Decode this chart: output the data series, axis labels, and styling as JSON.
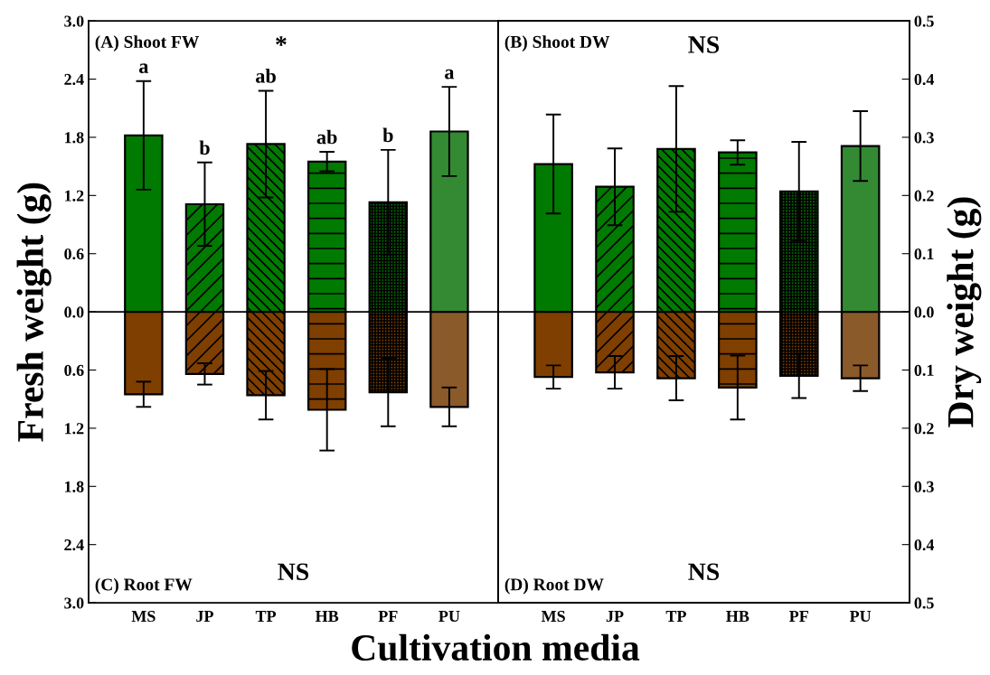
{
  "chart_data": [
    {
      "type": "bar",
      "ylabel": "Fresh weight (g)",
      "xlabel": "Cultivation media",
      "categories": [
        "MS",
        "JP",
        "TP",
        "HB",
        "PF",
        "PU"
      ],
      "series": [
        {
          "colors": [
            "#007a00",
            "#007a00",
            "#007a00",
            "#007a00",
            "#007a00",
            "#338a33"
          ],
          "values": [
            1.82,
            1.11,
            1.73,
            1.55,
            1.13,
            1.86
          ],
          "errors": [
            0.56,
            0.43,
            0.55,
            0.1,
            0.54,
            0.46
          ]
        },
        {
          "colors": [
            "#7f3f00",
            "#7f3f00",
            "#7f3f00",
            "#7f3f00",
            "#7f3f00",
            "#8b5a2b"
          ],
          "values": [
            -0.85,
            -0.64,
            -0.86,
            -1.01,
            -0.83,
            -0.98
          ],
          "errors": [
            0.13,
            0.11,
            0.25,
            0.42,
            0.35,
            0.2
          ]
        }
      ],
      "ylim": [
        -3,
        3
      ],
      "yticks": [
        {
          "value": -3,
          "label": "3.0"
        },
        {
          "value": -2.4,
          "label": "2.4"
        },
        {
          "value": -1.8,
          "label": "1.8"
        },
        {
          "value": -1.2,
          "label": "1.2"
        },
        {
          "value": -0.6,
          "label": "0.6"
        },
        {
          "value": 0,
          "label": "0.0"
        },
        {
          "value": 0.6,
          "label": "0.6"
        },
        {
          "value": 1.2,
          "label": "1.2"
        },
        {
          "value": 1.8,
          "label": "1.8"
        },
        {
          "value": 2.4,
          "label": "2.4"
        },
        {
          "value": 3,
          "label": "3.0"
        }
      ],
      "ref_lines": [
        {
          "axis": "y",
          "value": 0,
          "color": "#000000"
        }
      ],
      "annotations": [
        "(A) Shoot FW",
        "*",
        "(C) Root FW",
        "NS",
        {
          "text": "a",
          "x": "MS",
          "y": 2.38
        },
        {
          "text": "b",
          "x": "JP",
          "y": 1.54
        },
        {
          "text": "ab",
          "x": "TP",
          "y": 2.28
        },
        {
          "text": "ab",
          "x": "HB",
          "y": 1.65
        },
        {
          "text": "b",
          "x": "PF",
          "y": 1.67
        },
        {
          "text": "a",
          "x": "PU",
          "y": 2.32
        }
      ],
      "stacked": true,
      "grid": false,
      "legend": false
    },
    {
      "type": "bar",
      "y2label": "Dry weight (g)",
      "categories": [
        "MS",
        "JP",
        "TP",
        "HB",
        "PF",
        "PU"
      ],
      "series": [
        {
          "axis": "y2",
          "colors": [
            "#007a00",
            "#007a00",
            "#007a00",
            "#007a00",
            "#007a00",
            "#338a33"
          ],
          "values": [
            0.254,
            0.215,
            0.28,
            0.274,
            0.207,
            0.285
          ],
          "errors": [
            0.085,
            0.066,
            0.108,
            0.021,
            0.085,
            0.06
          ]
        },
        {
          "axis": "y2",
          "colors": [
            "#7f3f00",
            "#7f3f00",
            "#7f3f00",
            "#7f3f00",
            "#7f3f00",
            "#8b5a2b"
          ],
          "values": [
            -0.112,
            -0.104,
            -0.114,
            -0.13,
            -0.11,
            -0.114
          ],
          "errors": [
            0.02,
            0.028,
            0.038,
            0.055,
            0.038,
            0.022
          ]
        }
      ],
      "y2lim": [
        -0.5,
        0.5
      ],
      "y2ticks": [
        {
          "value": -0.5,
          "label": "0.5"
        },
        {
          "value": -0.4,
          "label": "0.4"
        },
        {
          "value": -0.3,
          "label": "0.3"
        },
        {
          "value": -0.2,
          "label": "0.2"
        },
        {
          "value": -0.1,
          "label": "0.1"
        },
        {
          "value": 0,
          "label": "0.0"
        },
        {
          "value": 0.1,
          "label": "0.1"
        },
        {
          "value": 0.2,
          "label": "0.2"
        },
        {
          "value": 0.3,
          "label": "0.3"
        },
        {
          "value": 0.4,
          "label": "0.4"
        },
        {
          "value": 0.5,
          "label": "0.5"
        }
      ],
      "ref_lines": [
        {
          "axis": "y2",
          "value": 0,
          "color": "#000000"
        }
      ],
      "annotations": [
        "(B) Shoot DW",
        "NS",
        "(D) Root DW",
        "NS"
      ],
      "stacked": true,
      "grid": false,
      "legend": false
    }
  ]
}
